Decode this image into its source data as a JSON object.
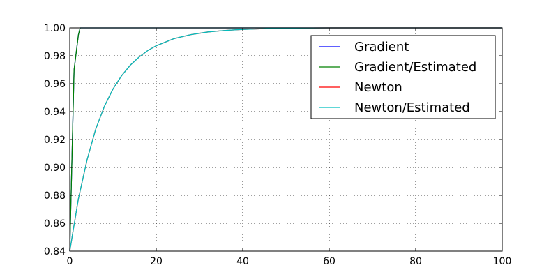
{
  "chart_data": {
    "type": "line",
    "title": "",
    "xlabel": "",
    "ylabel": "",
    "xlim": [
      0,
      100
    ],
    "ylim": [
      0.84,
      1.0
    ],
    "grid": true,
    "legend_position": "top-right",
    "x_ticks": [
      "0",
      "20",
      "40",
      "60",
      "80",
      "100"
    ],
    "y_ticks": [
      "0.84",
      "0.86",
      "0.88",
      "0.90",
      "0.92",
      "0.94",
      "0.96",
      "0.98",
      "1.00"
    ],
    "series": [
      {
        "name": "Gradient",
        "color": "#0000ff",
        "x": [
          0,
          1,
          2,
          2.4,
          3,
          4,
          5,
          6
        ],
        "y": [
          0.84,
          0.97,
          0.995,
          1.0,
          1.0,
          1.0,
          1.0,
          1.0
        ]
      },
      {
        "name": "Gradient/Estimated",
        "color": "#008000",
        "x": [
          0,
          1,
          2,
          2.4,
          3,
          4,
          5,
          6
        ],
        "y": [
          0.84,
          0.97,
          0.995,
          1.0,
          1.0,
          1.0,
          1.0,
          1.0
        ]
      },
      {
        "name": "Newton",
        "color": "#ff0000",
        "x": [
          0,
          2,
          4,
          6,
          8,
          10,
          12,
          14,
          16,
          18,
          20,
          24,
          28,
          32,
          36,
          40,
          44,
          48,
          52,
          56,
          60
        ],
        "y": [
          0.84,
          0.8775,
          0.9054,
          0.9274,
          0.9437,
          0.9562,
          0.9658,
          0.9733,
          0.979,
          0.9837,
          0.9872,
          0.9922,
          0.9952,
          0.9971,
          0.9982,
          0.9989,
          0.9993,
          0.9996,
          0.9998,
          0.9999,
          1.0
        ]
      },
      {
        "name": "Newton/Estimated",
        "color": "#00bfbf",
        "x": [
          0,
          2,
          4,
          6,
          8,
          10,
          12,
          14,
          16,
          18,
          20,
          24,
          28,
          32,
          36,
          40,
          44,
          48,
          52,
          56,
          60
        ],
        "y": [
          0.84,
          0.8775,
          0.9054,
          0.9274,
          0.9437,
          0.9562,
          0.9658,
          0.9733,
          0.979,
          0.9837,
          0.9872,
          0.9922,
          0.9952,
          0.9971,
          0.9982,
          0.9989,
          0.9993,
          0.9996,
          0.9998,
          0.9999,
          1.0
        ]
      }
    ]
  }
}
